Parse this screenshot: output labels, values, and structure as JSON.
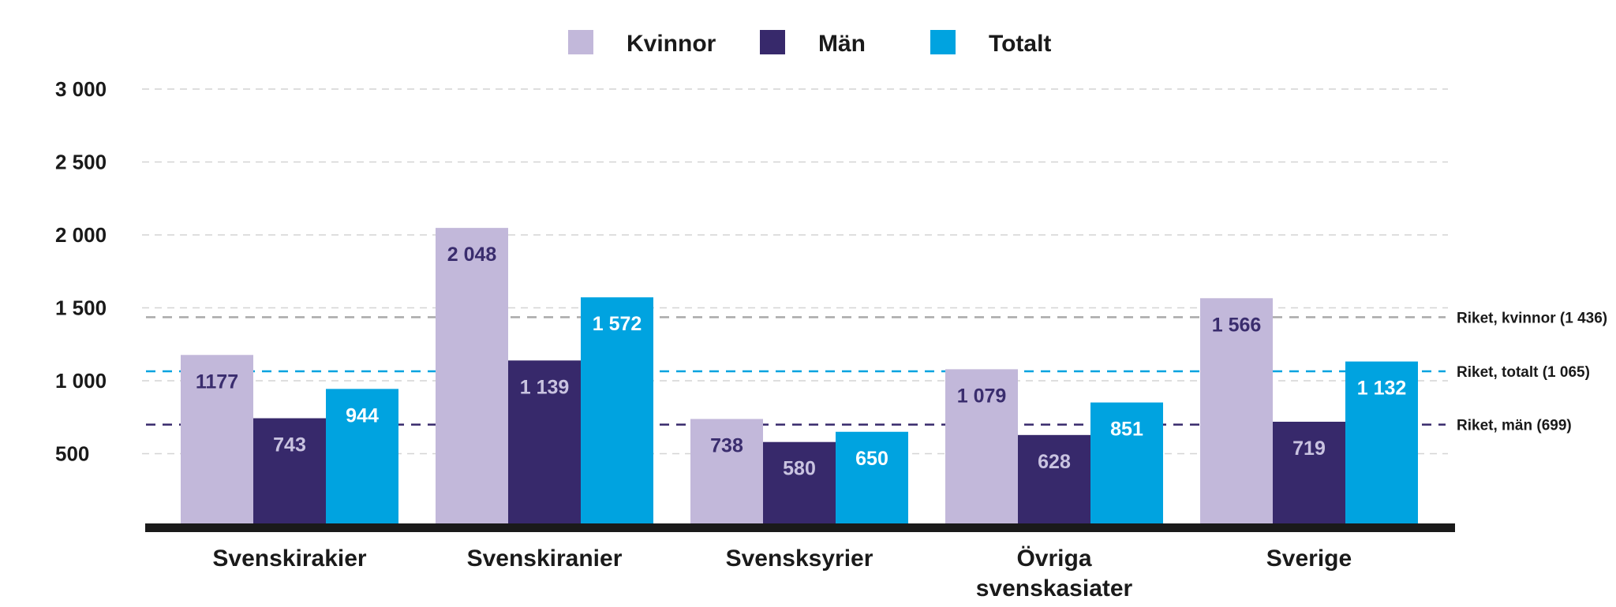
{
  "chart_data": {
    "type": "bar",
    "categories": [
      "Svenskirakier",
      "Svenskiranier",
      "Svensksyrier",
      "Övriga svenskasiater",
      "Sverige"
    ],
    "category_lines": [
      [
        "Svenskirakier"
      ],
      [
        "Svenskiranier"
      ],
      [
        "Svensksyrier"
      ],
      [
        "Övriga",
        "svenskasiater"
      ],
      [
        "Sverige"
      ]
    ],
    "series": [
      {
        "name": "Kvinnor",
        "color": "#c2b8da",
        "label_color": "#3a2d6e",
        "values": [
          1177,
          2048,
          738,
          1079,
          1566
        ],
        "labels": [
          "1177",
          "2 048",
          "738",
          "1 079",
          "1 566"
        ]
      },
      {
        "name": "Män",
        "color": "#37296b",
        "label_color": "#c9c3e0",
        "values": [
          743,
          1139,
          580,
          628,
          719
        ],
        "labels": [
          "743",
          "1 139",
          "580",
          "628",
          "719"
        ]
      },
      {
        "name": "Totalt",
        "color": "#00a3e0",
        "label_color": "#ffffff",
        "values": [
          944,
          1572,
          650,
          851,
          1132
        ],
        "labels": [
          "944",
          "1 572",
          "650",
          "851",
          "1 132"
        ]
      }
    ],
    "yticks": [
      {
        "value": 500,
        "label": "500"
      },
      {
        "value": 1000,
        "label": "1 000"
      },
      {
        "value": 1500,
        "label": "1 500"
      },
      {
        "value": 2000,
        "label": "2 000"
      },
      {
        "value": 2500,
        "label": "2 500"
      },
      {
        "value": 3000,
        "label": "3 000"
      }
    ],
    "ylim": [
      0,
      3000
    ],
    "grid": true,
    "legend_position": "top-center",
    "reference_lines": [
      {
        "name": "Riket, kvinnor",
        "value": 1436,
        "label": "Riket, kvinnor (1 436)",
        "color": "#a9a9a9"
      },
      {
        "name": "Riket, totalt",
        "value": 1065,
        "label": "Riket, totalt (1 065)",
        "color": "#00a3e0"
      },
      {
        "name": "Riket, män",
        "value": 699,
        "label": "Riket, män (699)",
        "color": "#37296b"
      }
    ],
    "title": "",
    "xlabel": "",
    "ylabel": ""
  }
}
